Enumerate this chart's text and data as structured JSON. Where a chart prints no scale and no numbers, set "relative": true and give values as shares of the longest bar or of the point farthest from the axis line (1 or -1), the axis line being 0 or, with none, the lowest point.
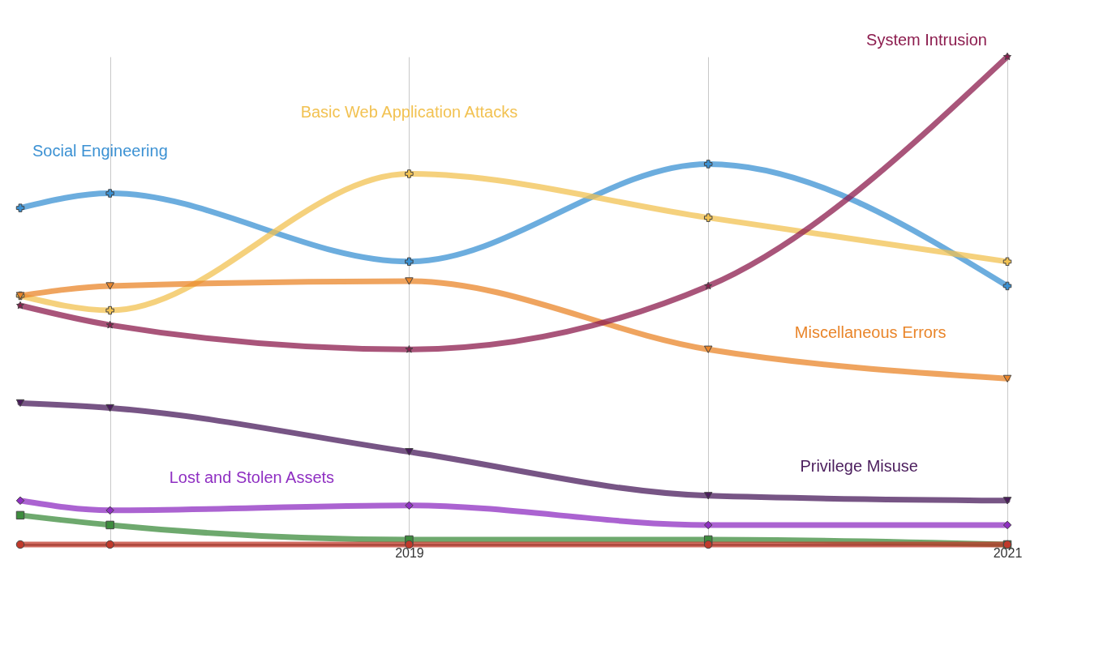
{
  "chart_data": {
    "type": "line",
    "relative": true,
    "x": [
      2017.7,
      2018,
      2019,
      2020,
      2021
    ],
    "xlim": [
      2017.7,
      2021
    ],
    "xticks": [
      {
        "value": 2018,
        "label": null
      },
      2019,
      {
        "value": 2020,
        "label": null
      },
      2021
    ],
    "grid": "x",
    "legend": false,
    "line_style": "solid",
    "series": [
      {
        "name": "Social Engineering",
        "color": "#3b91d3",
        "marker": "cross",
        "values": [
          0.69,
          0.72,
          0.58,
          0.78,
          0.53
        ]
      },
      {
        "name": "Basic Web Application Attacks",
        "color": "#f2c252",
        "marker": "cross",
        "values": [
          0.51,
          0.48,
          0.76,
          0.67,
          0.58
        ]
      },
      {
        "name": "Miscellaneous Errors",
        "color": "#e9852a",
        "marker": "triangle",
        "values": [
          0.51,
          0.53,
          0.54,
          0.4,
          0.34
        ]
      },
      {
        "name": "System Intrusion",
        "color": "#8c1c4e",
        "marker": "star",
        "values": [
          0.49,
          0.45,
          0.4,
          0.53,
          1
        ]
      },
      {
        "name": "Privilege Misuse",
        "color": "#4a1c5c",
        "marker": "triangle",
        "values": [
          0.29,
          0.28,
          0.19,
          0.1,
          0.09
        ]
      },
      {
        "name": "Lost and Stolen Assets",
        "color": "#8f2fc2",
        "marker": "diamond",
        "values": [
          0.09,
          0.07,
          0.08,
          0.04,
          0.04
        ]
      },
      {
        "color": "#3d8c3d",
        "marker": "square",
        "values": [
          0.06,
          0.04,
          0.01,
          0.01,
          0
        ]
      },
      {
        "color": "#c0392b",
        "marker": "circle",
        "values": [
          0,
          0,
          0,
          0,
          0
        ]
      }
    ]
  }
}
